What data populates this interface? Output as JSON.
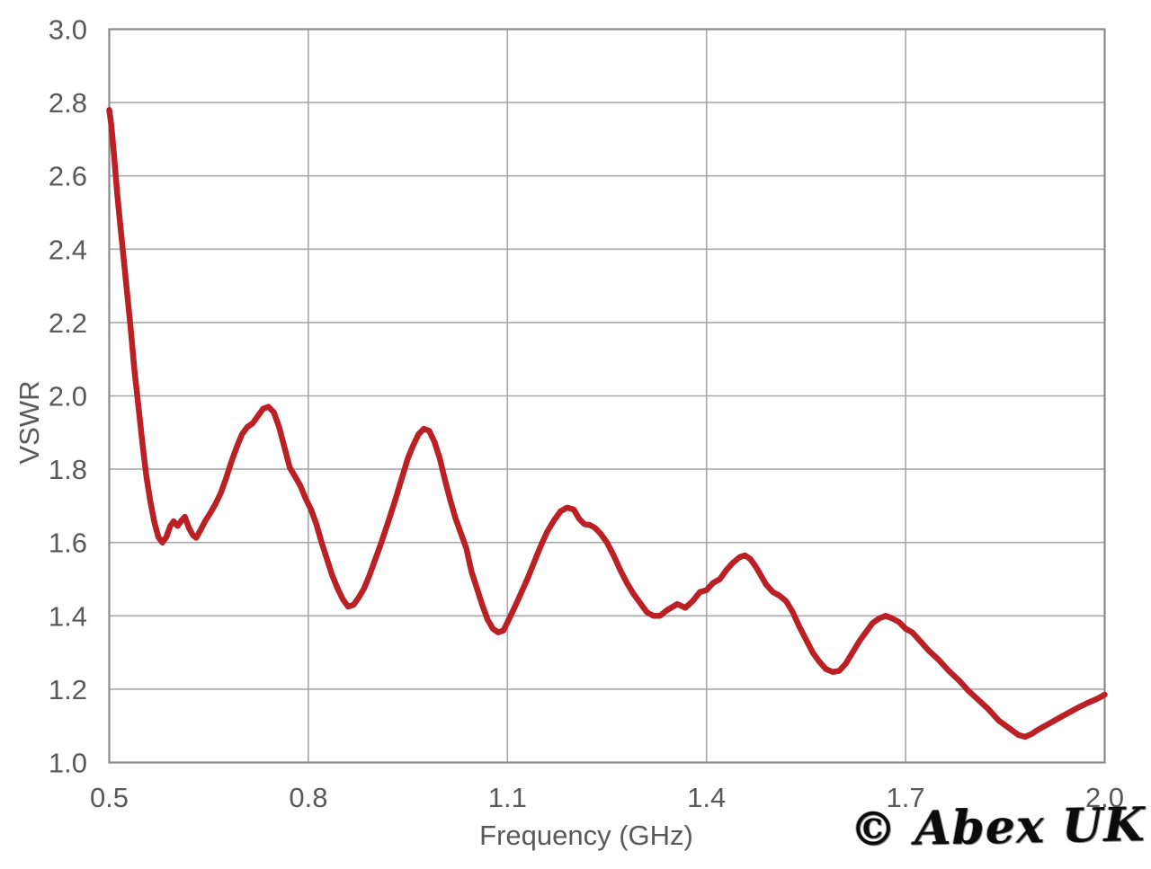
{
  "watermark": {
    "text": "© Abex UK"
  },
  "colors": {
    "curve": "#bb2025",
    "grid": "#a8a8a8",
    "border": "#8a8a8a",
    "tick_text": "#595959",
    "watermark": "#0b0b0b"
  },
  "chart_data": {
    "type": "line",
    "title": "",
    "xlabel": "Frequency (GHz)",
    "ylabel": "VSWR",
    "xlim": [
      0.5,
      2.0
    ],
    "ylim": [
      1.0,
      3.0
    ],
    "x_ticks": [
      0.5,
      0.8,
      1.1,
      1.4,
      1.7,
      2.0
    ],
    "y_ticks": [
      1.0,
      1.2,
      1.4,
      1.6,
      1.8,
      2.0,
      2.2,
      2.4,
      2.6,
      2.8,
      3.0
    ],
    "grid": true,
    "legend": "none",
    "series": [
      {
        "name": "VSWR",
        "points": [
          [
            0.5,
            2.78
          ],
          [
            0.503,
            2.74
          ],
          [
            0.507,
            2.66
          ],
          [
            0.512,
            2.55
          ],
          [
            0.517,
            2.46
          ],
          [
            0.522,
            2.37
          ],
          [
            0.527,
            2.28
          ],
          [
            0.532,
            2.19
          ],
          [
            0.538,
            2.07
          ],
          [
            0.544,
            1.97
          ],
          [
            0.55,
            1.87
          ],
          [
            0.556,
            1.78
          ],
          [
            0.562,
            1.71
          ],
          [
            0.568,
            1.655
          ],
          [
            0.574,
            1.615
          ],
          [
            0.58,
            1.6
          ],
          [
            0.586,
            1.615
          ],
          [
            0.592,
            1.645
          ],
          [
            0.597,
            1.658
          ],
          [
            0.603,
            1.645
          ],
          [
            0.609,
            1.66
          ],
          [
            0.614,
            1.67
          ],
          [
            0.62,
            1.64
          ],
          [
            0.626,
            1.62
          ],
          [
            0.631,
            1.613
          ],
          [
            0.638,
            1.635
          ],
          [
            0.645,
            1.66
          ],
          [
            0.652,
            1.68
          ],
          [
            0.66,
            1.705
          ],
          [
            0.668,
            1.735
          ],
          [
            0.676,
            1.775
          ],
          [
            0.684,
            1.82
          ],
          [
            0.692,
            1.86
          ],
          [
            0.7,
            1.895
          ],
          [
            0.708,
            1.915
          ],
          [
            0.716,
            1.925
          ],
          [
            0.724,
            1.945
          ],
          [
            0.732,
            1.965
          ],
          [
            0.74,
            1.97
          ],
          [
            0.748,
            1.955
          ],
          [
            0.756,
            1.915
          ],
          [
            0.764,
            1.86
          ],
          [
            0.772,
            1.805
          ],
          [
            0.78,
            1.78
          ],
          [
            0.788,
            1.755
          ],
          [
            0.796,
            1.72
          ],
          [
            0.804,
            1.69
          ],
          [
            0.812,
            1.65
          ],
          [
            0.82,
            1.6
          ],
          [
            0.828,
            1.555
          ],
          [
            0.836,
            1.51
          ],
          [
            0.844,
            1.475
          ],
          [
            0.852,
            1.445
          ],
          [
            0.86,
            1.425
          ],
          [
            0.868,
            1.43
          ],
          [
            0.876,
            1.45
          ],
          [
            0.884,
            1.475
          ],
          [
            0.892,
            1.51
          ],
          [
            0.9,
            1.55
          ],
          [
            0.91,
            1.6
          ],
          [
            0.92,
            1.655
          ],
          [
            0.93,
            1.71
          ],
          [
            0.94,
            1.77
          ],
          [
            0.95,
            1.83
          ],
          [
            0.958,
            1.865
          ],
          [
            0.966,
            1.895
          ],
          [
            0.974,
            1.91
          ],
          [
            0.982,
            1.905
          ],
          [
            0.99,
            1.875
          ],
          [
            0.998,
            1.83
          ],
          [
            1.006,
            1.77
          ],
          [
            1.014,
            1.715
          ],
          [
            1.022,
            1.665
          ],
          [
            1.03,
            1.625
          ],
          [
            1.038,
            1.585
          ],
          [
            1.046,
            1.52
          ],
          [
            1.054,
            1.475
          ],
          [
            1.062,
            1.43
          ],
          [
            1.07,
            1.39
          ],
          [
            1.078,
            1.365
          ],
          [
            1.086,
            1.355
          ],
          [
            1.094,
            1.36
          ],
          [
            1.102,
            1.39
          ],
          [
            1.11,
            1.42
          ],
          [
            1.12,
            1.46
          ],
          [
            1.13,
            1.5
          ],
          [
            1.14,
            1.545
          ],
          [
            1.15,
            1.59
          ],
          [
            1.16,
            1.63
          ],
          [
            1.17,
            1.66
          ],
          [
            1.18,
            1.685
          ],
          [
            1.19,
            1.695
          ],
          [
            1.2,
            1.69
          ],
          [
            1.208,
            1.665
          ],
          [
            1.216,
            1.65
          ],
          [
            1.224,
            1.648
          ],
          [
            1.232,
            1.64
          ],
          [
            1.24,
            1.625
          ],
          [
            1.25,
            1.6
          ],
          [
            1.26,
            1.565
          ],
          [
            1.27,
            1.525
          ],
          [
            1.28,
            1.49
          ],
          [
            1.29,
            1.46
          ],
          [
            1.3,
            1.435
          ],
          [
            1.31,
            1.41
          ],
          [
            1.32,
            1.4
          ],
          [
            1.33,
            1.4
          ],
          [
            1.34,
            1.415
          ],
          [
            1.356,
            1.432
          ],
          [
            1.368,
            1.422
          ],
          [
            1.379,
            1.44
          ],
          [
            1.39,
            1.465
          ],
          [
            1.4,
            1.47
          ],
          [
            1.41,
            1.49
          ],
          [
            1.42,
            1.5
          ],
          [
            1.43,
            1.525
          ],
          [
            1.44,
            1.545
          ],
          [
            1.45,
            1.56
          ],
          [
            1.458,
            1.565
          ],
          [
            1.466,
            1.555
          ],
          [
            1.474,
            1.535
          ],
          [
            1.482,
            1.51
          ],
          [
            1.49,
            1.485
          ],
          [
            1.5,
            1.465
          ],
          [
            1.51,
            1.455
          ],
          [
            1.52,
            1.44
          ],
          [
            1.53,
            1.41
          ],
          [
            1.54,
            1.37
          ],
          [
            1.55,
            1.335
          ],
          [
            1.56,
            1.3
          ],
          [
            1.57,
            1.275
          ],
          [
            1.58,
            1.255
          ],
          [
            1.59,
            1.247
          ],
          [
            1.6,
            1.25
          ],
          [
            1.61,
            1.27
          ],
          [
            1.62,
            1.3
          ],
          [
            1.63,
            1.33
          ],
          [
            1.64,
            1.355
          ],
          [
            1.65,
            1.38
          ],
          [
            1.66,
            1.393
          ],
          [
            1.67,
            1.4
          ],
          [
            1.68,
            1.393
          ],
          [
            1.69,
            1.383
          ],
          [
            1.7,
            1.365
          ],
          [
            1.71,
            1.355
          ],
          [
            1.72,
            1.335
          ],
          [
            1.735,
            1.305
          ],
          [
            1.75,
            1.28
          ],
          [
            1.765,
            1.25
          ],
          [
            1.78,
            1.225
          ],
          [
            1.795,
            1.195
          ],
          [
            1.81,
            1.17
          ],
          [
            1.825,
            1.145
          ],
          [
            1.84,
            1.115
          ],
          [
            1.855,
            1.095
          ],
          [
            1.87,
            1.075
          ],
          [
            1.88,
            1.07
          ],
          [
            1.89,
            1.078
          ],
          [
            1.9,
            1.09
          ],
          [
            1.915,
            1.105
          ],
          [
            1.93,
            1.12
          ],
          [
            1.945,
            1.135
          ],
          [
            1.96,
            1.15
          ],
          [
            1.975,
            1.163
          ],
          [
            1.99,
            1.175
          ],
          [
            2.0,
            1.185
          ]
        ]
      }
    ]
  }
}
